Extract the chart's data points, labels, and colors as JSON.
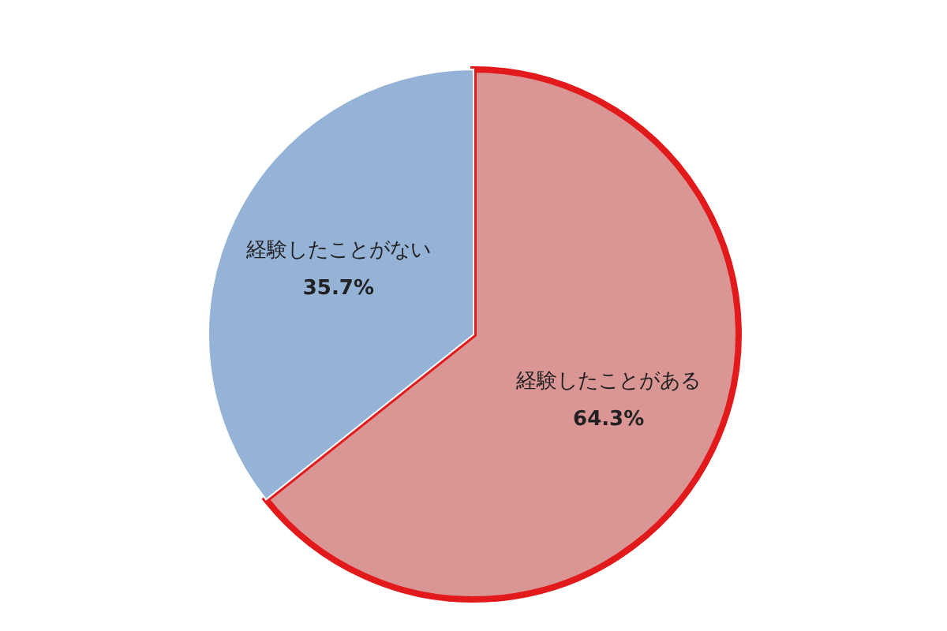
{
  "chart_data": {
    "type": "pie",
    "categories": [
      "経験したことがある",
      "経験したことがない"
    ],
    "values": [
      64.3,
      35.7
    ],
    "colors": [
      "#d99694",
      "#95b3d7"
    ],
    "value_labels": [
      "64.3%",
      "35.7%"
    ]
  }
}
